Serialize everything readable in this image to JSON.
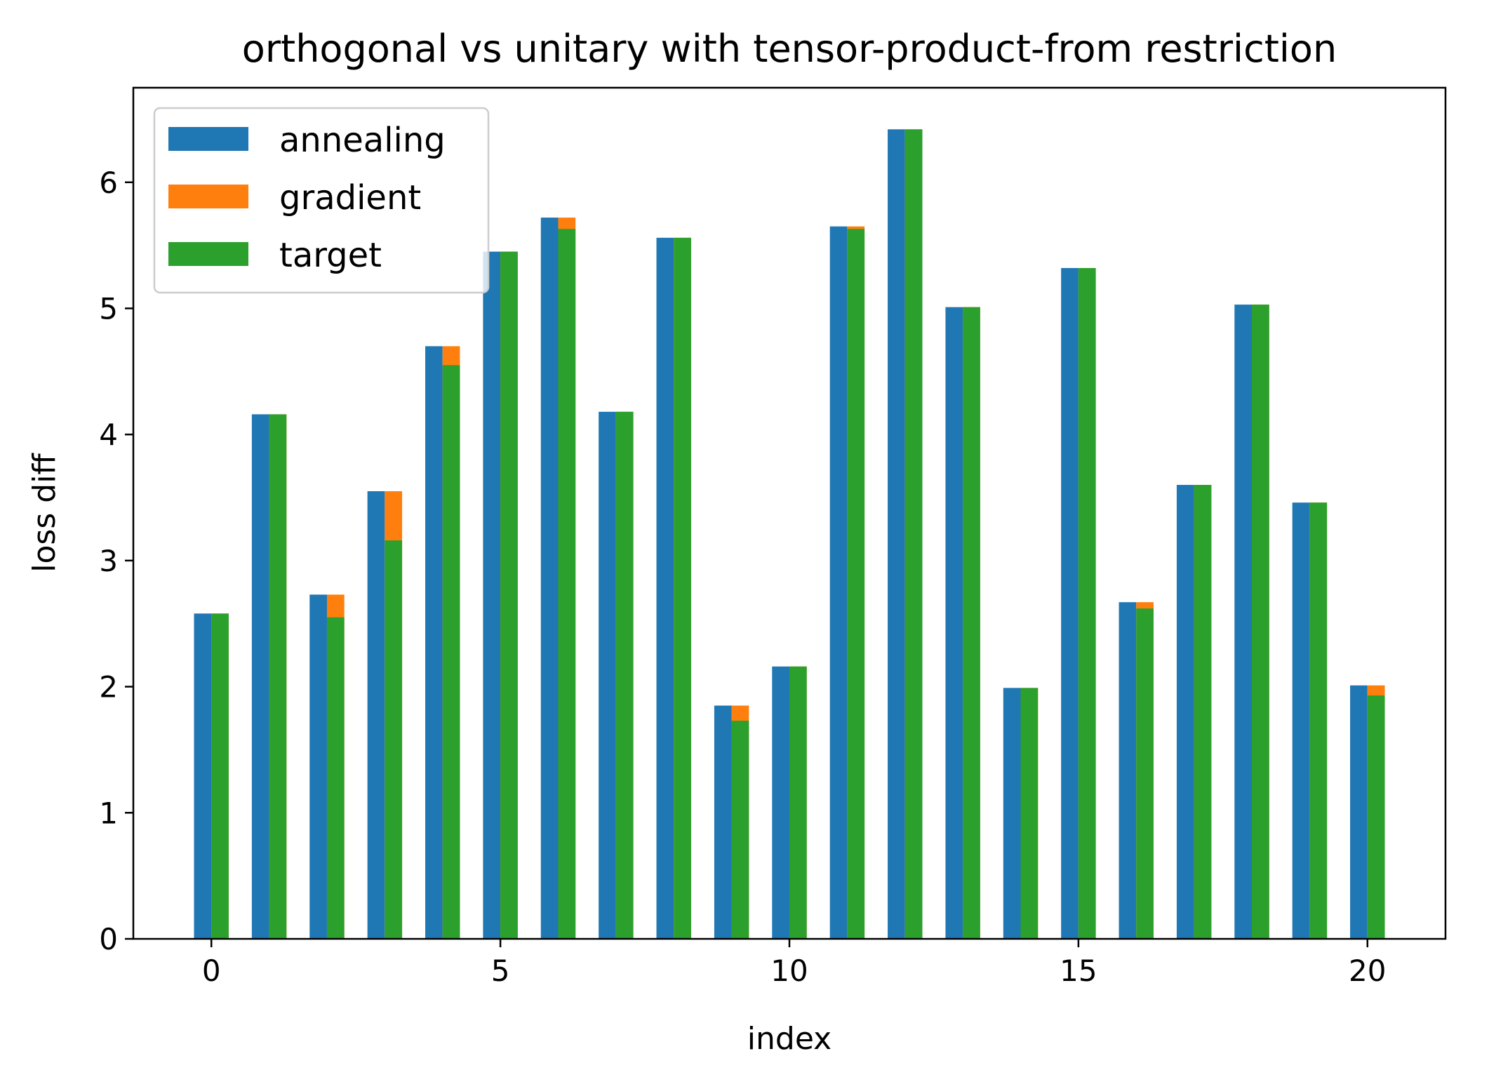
{
  "chart_data": {
    "type": "bar",
    "title": "orthogonal vs unitary with tensor-product-from restriction",
    "xlabel": "index",
    "ylabel": "loss diff",
    "xlim": [
      -1.35,
      21.35
    ],
    "ylim": [
      0,
      6.75
    ],
    "xticks": [
      0,
      5,
      10,
      15,
      20
    ],
    "yticks": [
      0,
      1,
      2,
      3,
      4,
      5,
      6
    ],
    "grid": false,
    "legend_position": "top-left",
    "x": [
      0,
      1,
      2,
      3,
      4,
      5,
      6,
      7,
      8,
      9,
      10,
      11,
      12,
      13,
      14,
      15,
      16,
      17,
      18,
      19,
      20
    ],
    "series": [
      {
        "name": "annealing",
        "color": "#1f77b4",
        "offset": "left",
        "values": [
          2.58,
          4.16,
          2.73,
          3.55,
          4.7,
          5.45,
          5.72,
          4.18,
          5.56,
          1.85,
          2.16,
          5.65,
          6.42,
          5.01,
          1.99,
          5.32,
          2.67,
          3.6,
          5.03,
          3.46,
          2.01
        ]
      },
      {
        "name": "gradient",
        "color": "#ff7f0e",
        "offset": "right",
        "values": [
          2.58,
          4.16,
          2.73,
          3.55,
          4.7,
          5.45,
          5.72,
          4.18,
          5.56,
          1.85,
          2.16,
          5.65,
          6.42,
          5.01,
          1.99,
          5.32,
          2.67,
          3.6,
          5.03,
          3.46,
          2.01
        ]
      },
      {
        "name": "target",
        "color": "#2ca02c",
        "offset": "right",
        "values": [
          2.58,
          4.16,
          2.55,
          3.16,
          4.55,
          5.45,
          5.63,
          4.18,
          5.56,
          1.73,
          2.16,
          5.63,
          6.42,
          5.01,
          1.99,
          5.32,
          2.62,
          3.6,
          5.03,
          3.46,
          1.93
        ]
      }
    ]
  }
}
